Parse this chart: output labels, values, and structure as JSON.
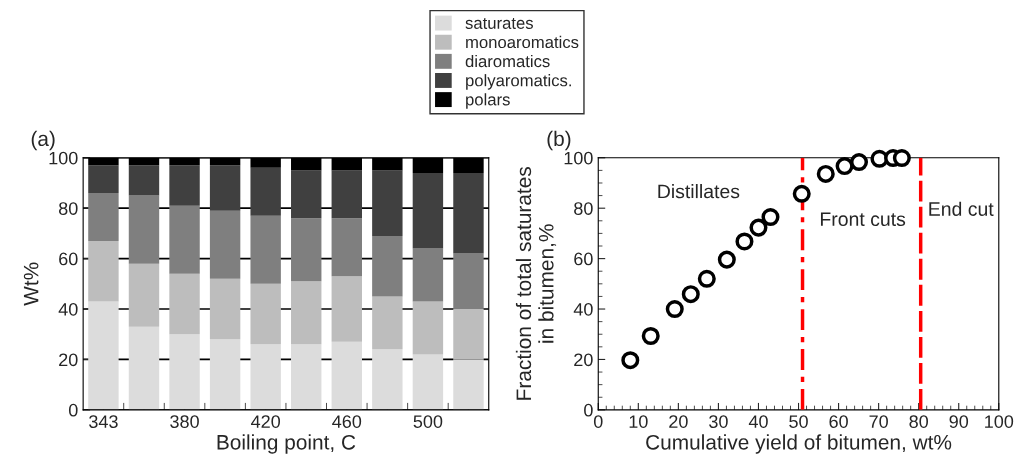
{
  "chart_data": [
    {
      "type": "bar",
      "title": "(a)",
      "ylabel": "Wt%",
      "xlabel": "Boiling point, C",
      "stacked": true,
      "legend": "top",
      "grid": "y",
      "categories": [
        "343",
        null,
        "380",
        null,
        "420",
        null,
        "460",
        null,
        "500",
        null
      ],
      "ylim": [
        0,
        100
      ],
      "yticks": [
        0,
        20,
        40,
        60,
        80,
        100
      ],
      "series": [
        {
          "name": "saturates",
          "color": "#dcdcdc",
          "values": [
            43,
            33,
            30,
            28,
            26,
            26,
            27,
            24,
            22,
            20
          ]
        },
        {
          "name": "monoaromatics",
          "color": "#bdbdbd",
          "values": [
            24,
            25,
            24,
            24,
            24,
            25,
            26,
            21,
            21,
            20
          ]
        },
        {
          "name": "diaromatics",
          "color": "#7f7f7f",
          "values": [
            19,
            27,
            27,
            27,
            27,
            25,
            23,
            24,
            21,
            22
          ]
        },
        {
          "name": "polyaromatics.",
          "color": "#404040",
          "values": [
            11,
            12,
            16,
            18,
            19,
            19,
            19,
            26,
            30,
            32
          ]
        },
        {
          "name": "polars",
          "color": "#000000",
          "values": [
            3,
            3,
            3,
            3,
            4,
            5,
            5,
            5,
            6,
            6
          ]
        }
      ]
    },
    {
      "type": "scatter",
      "title": "(b)",
      "xlabel": "Cumulative yield of bitumen, wt%",
      "ylabel": "Fraction of total saturates\nin bitumen,%",
      "marker": "circle",
      "grid": false,
      "xlim": [
        0,
        100
      ],
      "xticks": [
        0,
        10,
        20,
        30,
        40,
        50,
        60,
        70,
        80,
        90,
        100
      ],
      "ylim": [
        0,
        100
      ],
      "yticks": [
        0,
        20,
        40,
        60,
        80,
        100
      ],
      "series": [
        {
          "color": "#000000",
          "x": [
            8,
            13.1,
            19.1,
            23.1,
            27.1,
            32.1,
            36.5,
            40,
            43,
            50.8,
            56.8,
            61.5,
            65.1,
            70.2,
            73.6,
            75.8
          ],
          "values": [
            19.7,
            29.3,
            40,
            45.9,
            52,
            59.6,
            66.8,
            72.3,
            76.5,
            85.7,
            93.6,
            96.7,
            98.3,
            99.6,
            99.9,
            99.9
          ]
        }
      ],
      "ref_lines": [
        {
          "axis": "x",
          "value": 51,
          "color": "#ff0000",
          "line_style": "dashdot"
        },
        {
          "axis": "x",
          "value": 80.5,
          "color": "#ff0000",
          "line_style": "dashed"
        }
      ],
      "annotations": [
        "Distillates",
        "Front cuts",
        "End cut"
      ]
    }
  ]
}
